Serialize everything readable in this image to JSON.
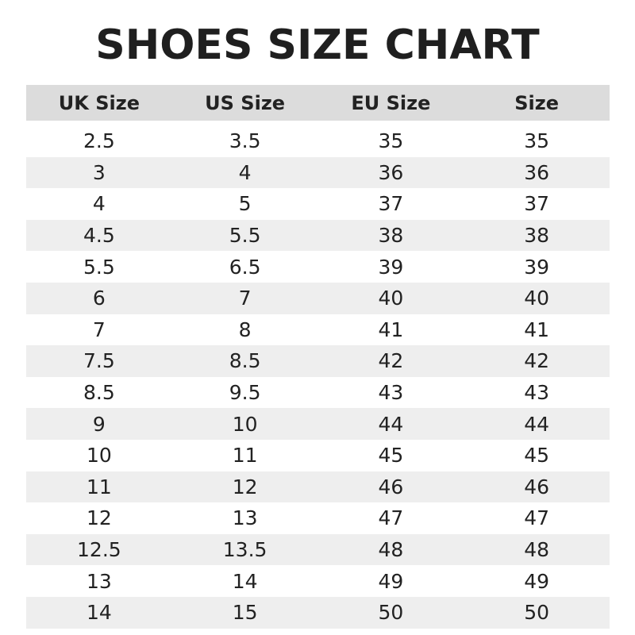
{
  "header": {
    "title": "SHOES SIZE CHART"
  },
  "table": {
    "columns": [
      "UK Size",
      "US Size",
      "EU Size",
      "Size"
    ],
    "rows": [
      [
        "2.5",
        "3.5",
        "35",
        "35"
      ],
      [
        "3",
        "4",
        "36",
        "36"
      ],
      [
        "4",
        "5",
        "37",
        "37"
      ],
      [
        "4.5",
        "5.5",
        "38",
        "38"
      ],
      [
        "5.5",
        "6.5",
        "39",
        "39"
      ],
      [
        "6",
        "7",
        "40",
        "40"
      ],
      [
        "7",
        "8",
        "41",
        "41"
      ],
      [
        "7.5",
        "8.5",
        "42",
        "42"
      ],
      [
        "8.5",
        "9.5",
        "43",
        "43"
      ],
      [
        "9",
        "10",
        "44",
        "44"
      ],
      [
        "10",
        "11",
        "45",
        "45"
      ],
      [
        "11",
        "12",
        "46",
        "46"
      ],
      [
        "12",
        "13",
        "47",
        "47"
      ],
      [
        "12.5",
        "13.5",
        "48",
        "48"
      ],
      [
        "13",
        "14",
        "49",
        "49"
      ],
      [
        "14",
        "15",
        "50",
        "50"
      ]
    ]
  }
}
